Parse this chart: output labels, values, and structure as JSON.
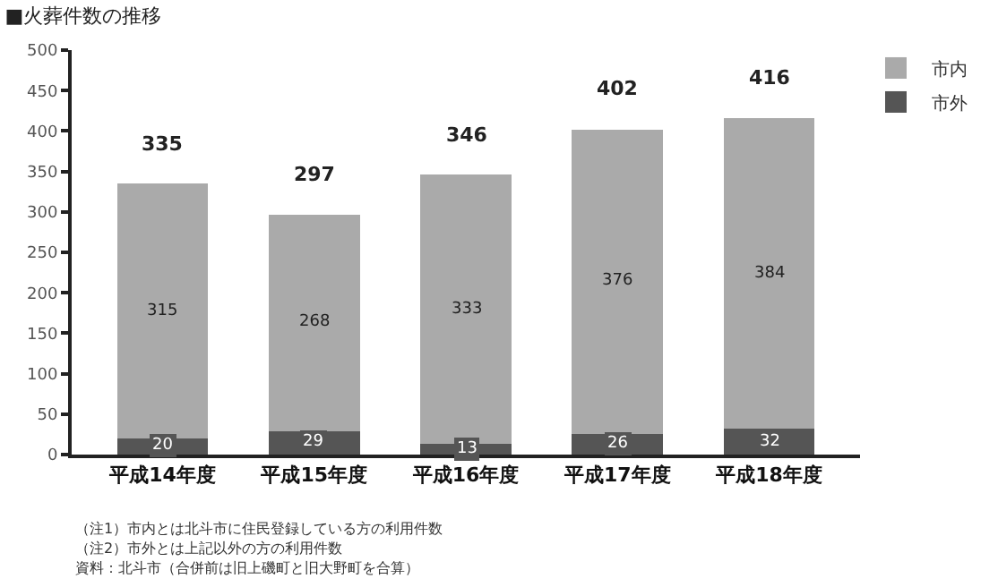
{
  "chart_data": {
    "type": "bar",
    "title": "■火葬件数の推移",
    "categories": [
      "平成14年度",
      "平成15年度",
      "平成16年度",
      "平成17年度",
      "平成18年度"
    ],
    "series": [
      {
        "name": "市外",
        "color": "#555555",
        "values": [
          20,
          29,
          13,
          26,
          32
        ]
      },
      {
        "name": "市内",
        "color": "#aaaaaa",
        "values": [
          315,
          268,
          333,
          376,
          384
        ]
      }
    ],
    "stacked": true,
    "data_labels": true,
    "totals": [
      "335",
      "297",
      "346",
      "402",
      "416"
    ],
    "ylim": [
      0,
      500
    ],
    "yticks": [
      0,
      50,
      100,
      150,
      200,
      250,
      300,
      350,
      400,
      450,
      500
    ],
    "grid": false,
    "legend": "top right",
    "annotations": [
      "（注1）市内とは北斗市に住民登録している方の利用件数",
      "（注2）市外とは上記以外の方の利用件数",
      "資料：北斗市（合併前は旧上磯町と旧大野町を合算）"
    ]
  }
}
